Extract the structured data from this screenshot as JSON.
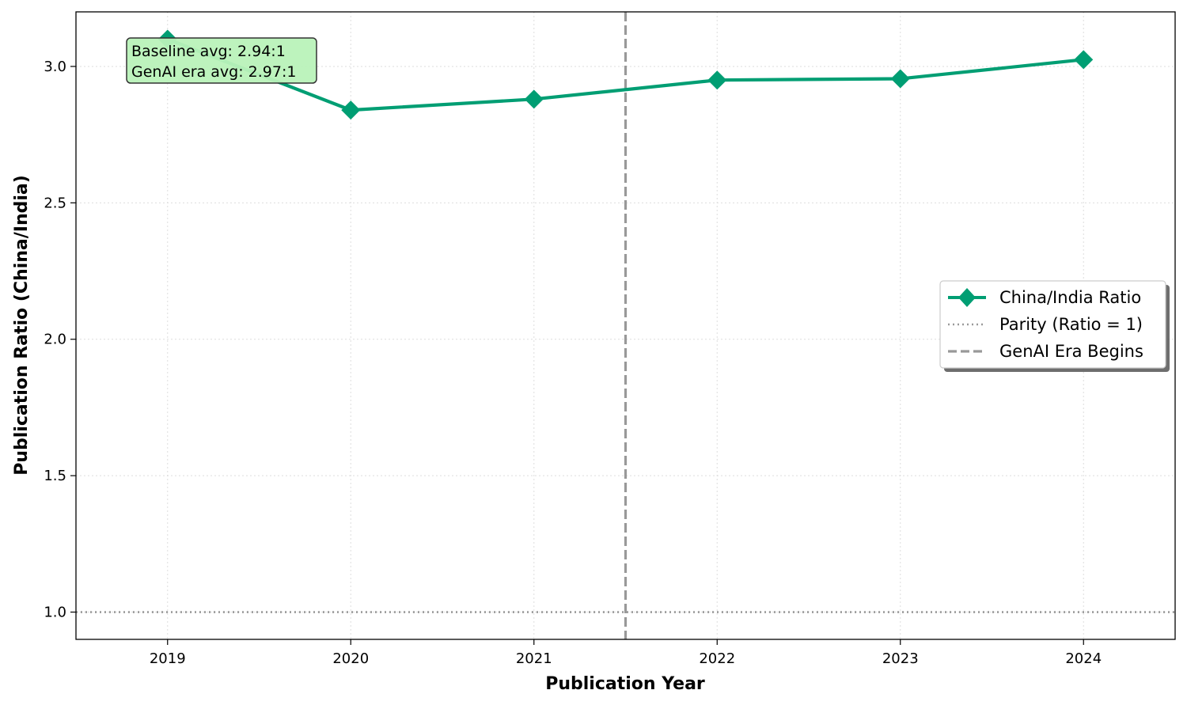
{
  "chart_data": {
    "type": "line",
    "title": "",
    "xlabel": "Publication Year",
    "ylabel": "Publication Ratio (China/India)",
    "x": [
      2019,
      2020,
      2021,
      2022,
      2023,
      2024
    ],
    "x_tick_labels": [
      "2019",
      "2020",
      "2021",
      "2022",
      "2023",
      "2024"
    ],
    "xlim": [
      2018.5,
      2024.5
    ],
    "ylim": [
      0.9,
      3.2
    ],
    "y_ticks": [
      1.0,
      1.5,
      2.0,
      2.5,
      3.0
    ],
    "y_tick_labels": [
      "1.0",
      "1.5",
      "2.0",
      "2.5",
      "3.0"
    ],
    "grid": true,
    "series": [
      {
        "name": "China/India Ratio",
        "color": "#009E73",
        "marker": "diamond",
        "values": [
          3.1,
          2.84,
          2.88,
          2.95,
          2.955,
          3.025
        ]
      }
    ],
    "reference_lines": [
      {
        "name": "Parity (Ratio = 1)",
        "orientation": "horizontal",
        "value": 1.0,
        "color": "#999999",
        "style": "dotted"
      },
      {
        "name": "GenAI Era Begins",
        "orientation": "vertical",
        "value": 2021.5,
        "color": "#999999",
        "style": "dashed"
      }
    ],
    "annotation": {
      "lines": [
        "Baseline avg: 2.94:1",
        "GenAI era avg: 2.97:1"
      ],
      "background": "#b9f2b9"
    },
    "legend": {
      "placement": "center-right",
      "entries": [
        "China/India Ratio",
        "Parity (Ratio = 1)",
        "GenAI Era Begins"
      ]
    }
  }
}
